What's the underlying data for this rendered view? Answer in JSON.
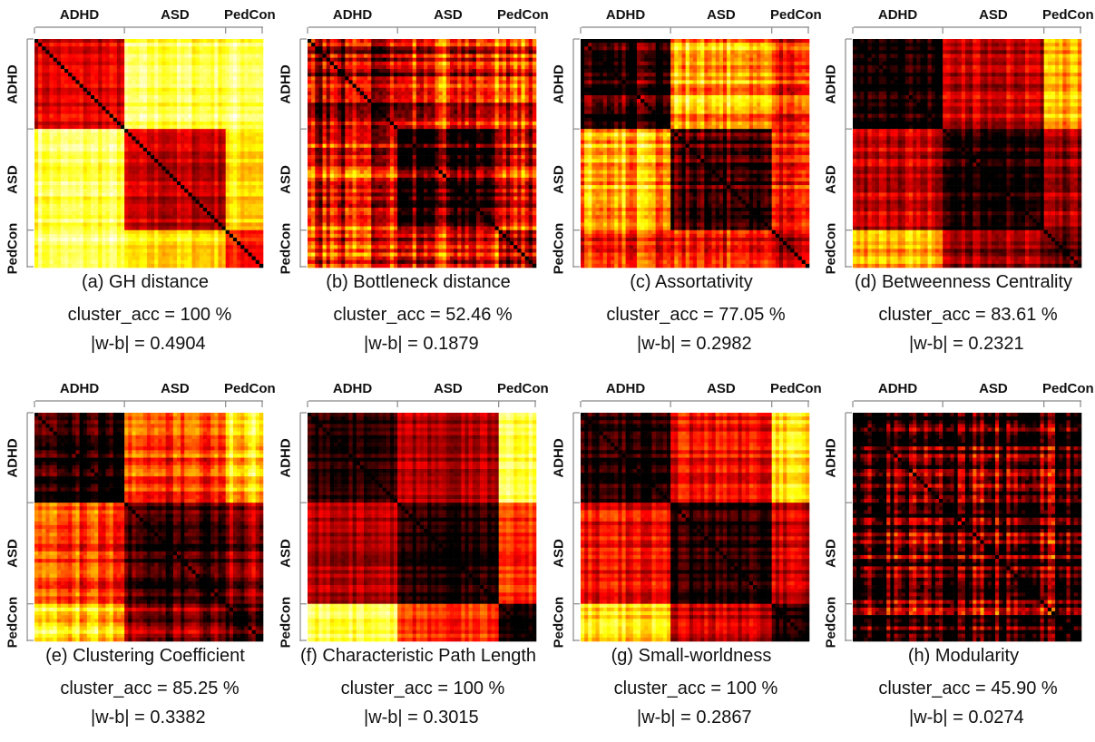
{
  "chart_data": {
    "type": "heatmap",
    "colormap": "hot",
    "groups": [
      {
        "name": "ADHD",
        "size": 24
      },
      {
        "name": "ASD",
        "size": 27
      },
      {
        "name": "PedCon",
        "size": 10
      }
    ],
    "panels": [
      {
        "id": "a",
        "title": "(a) GH distance",
        "cluster_acc": "cluster_acc = 100 %",
        "wb": "|w-b| = 0.4904",
        "block_means": [
          [
            0.33,
            0.82,
            0.85
          ],
          [
            0.82,
            0.28,
            0.7
          ],
          [
            0.85,
            0.7,
            0.42
          ]
        ],
        "noise": 0.08,
        "zero_diag": true
      },
      {
        "id": "b",
        "title": "(b) Bottleneck distance",
        "cluster_acc": "cluster_acc = 52.46 %",
        "wb": "|w-b| = 0.1879",
        "block_means": [
          [
            0.22,
            0.4,
            0.42
          ],
          [
            0.4,
            0.18,
            0.42
          ],
          [
            0.42,
            0.42,
            0.3
          ]
        ],
        "noise": 0.2,
        "zero_diag": true
      },
      {
        "id": "c",
        "title": "(c) Assortativity",
        "cluster_acc": "cluster_acc = 77.05 %",
        "wb": "|w-b| = 0.2982",
        "block_means": [
          [
            0.04,
            0.6,
            0.35
          ],
          [
            0.6,
            0.04,
            0.3
          ],
          [
            0.35,
            0.3,
            0.12
          ]
        ],
        "noise": 0.15,
        "zero_diag": true
      },
      {
        "id": "d",
        "title": "(d) Betweenness Centrality",
        "cluster_acc": "cluster_acc = 83.61 %",
        "wb": "|w-b| = 0.2321",
        "block_means": [
          [
            0.03,
            0.3,
            0.62
          ],
          [
            0.3,
            0.03,
            0.2
          ],
          [
            0.62,
            0.2,
            0.06
          ]
        ],
        "noise": 0.1,
        "zero_diag": true
      },
      {
        "id": "e",
        "title": "(e) Clustering Coefficient",
        "cluster_acc": "cluster_acc = 85.25 %",
        "wb": "|w-b| = 0.3382",
        "block_means": [
          [
            0.03,
            0.45,
            0.7
          ],
          [
            0.45,
            0.03,
            0.18
          ],
          [
            0.7,
            0.18,
            0.08
          ]
        ],
        "noise": 0.12,
        "zero_diag": true
      },
      {
        "id": "f",
        "title": "(f) Characteristic Path Length",
        "cluster_acc": "cluster_acc = 100 %",
        "wb": "|w-b| = 0.3015",
        "block_means": [
          [
            0.03,
            0.24,
            0.82
          ],
          [
            0.24,
            0.03,
            0.45
          ],
          [
            0.82,
            0.45,
            0.03
          ]
        ],
        "noise": 0.07,
        "zero_diag": true
      },
      {
        "id": "g",
        "title": "(g) Small-worldness",
        "cluster_acc": "cluster_acc = 100 %",
        "wb": "|w-b| = 0.2867",
        "block_means": [
          [
            0.03,
            0.36,
            0.72
          ],
          [
            0.36,
            0.03,
            0.3
          ],
          [
            0.72,
            0.3,
            0.05
          ]
        ],
        "noise": 0.09,
        "zero_diag": true
      },
      {
        "id": "h",
        "title": "(h) Modularity",
        "cluster_acc": "cluster_acc = 45.90 %",
        "wb": "|w-b| = 0.0274",
        "block_means": [
          [
            0.12,
            0.14,
            0.14
          ],
          [
            0.14,
            0.1,
            0.14
          ],
          [
            0.14,
            0.14,
            0.12
          ]
        ],
        "noise": 0.25,
        "zero_diag": true
      }
    ]
  }
}
